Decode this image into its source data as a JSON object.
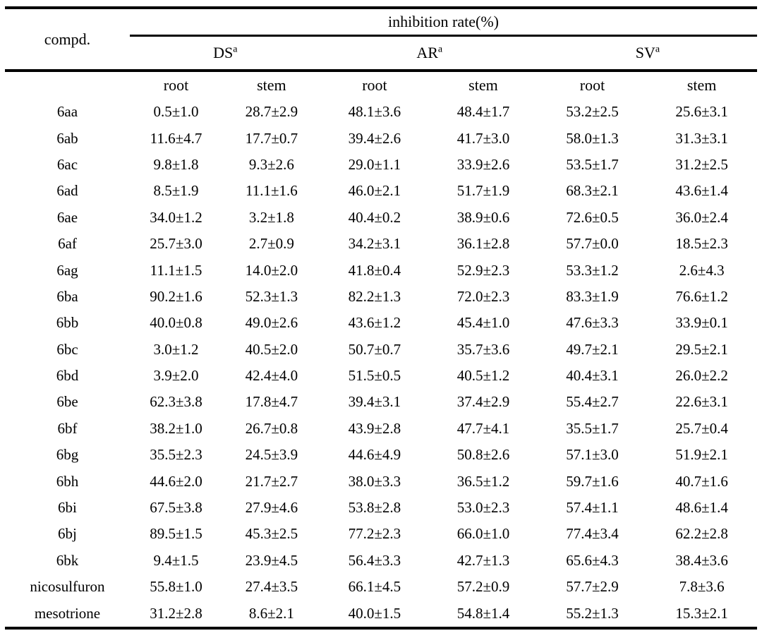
{
  "page": {
    "background": "#ffffff",
    "text_color": "#000000"
  },
  "table": {
    "compd_header": "compd.",
    "group_header": "inhibition rate(%)",
    "subgroups": [
      {
        "label": "DS",
        "sup": "a"
      },
      {
        "label": "AR",
        "sup": "a"
      },
      {
        "label": "SV",
        "sup": "a"
      }
    ],
    "sub_columns": [
      "root",
      "stem",
      "root",
      "stem",
      "root",
      "stem"
    ],
    "rows": [
      {
        "compd": "6aa",
        "values": [
          "0.5±1.0",
          "28.7±2.9",
          "48.1±3.6",
          "48.4±1.7",
          "53.2±2.5",
          "25.6±3.1"
        ]
      },
      {
        "compd": "6ab",
        "values": [
          "11.6±4.7",
          "17.7±0.7",
          "39.4±2.6",
          "41.7±3.0",
          "58.0±1.3",
          "31.3±3.1"
        ]
      },
      {
        "compd": "6ac",
        "values": [
          "9.8±1.8",
          "9.3±2.6",
          "29.0±1.1",
          "33.9±2.6",
          "53.5±1.7",
          "31.2±2.5"
        ]
      },
      {
        "compd": "6ad",
        "values": [
          "8.5±1.9",
          "11.1±1.6",
          "46.0±2.1",
          "51.7±1.9",
          "68.3±2.1",
          "43.6±1.4"
        ]
      },
      {
        "compd": "6ae",
        "values": [
          "34.0±1.2",
          "3.2±1.8",
          "40.4±0.2",
          "38.9±0.6",
          "72.6±0.5",
          "36.0±2.4"
        ]
      },
      {
        "compd": "6af",
        "values": [
          "25.7±3.0",
          "2.7±0.9",
          "34.2±3.1",
          "36.1±2.8",
          "57.7±0.0",
          "18.5±2.3"
        ]
      },
      {
        "compd": "6ag",
        "values": [
          "11.1±1.5",
          "14.0±2.0",
          "41.8±0.4",
          "52.9±2.3",
          "53.3±1.2",
          "2.6±4.3"
        ]
      },
      {
        "compd": "6ba",
        "values": [
          "90.2±1.6",
          "52.3±1.3",
          "82.2±1.3",
          "72.0±2.3",
          "83.3±1.9",
          "76.6±1.2"
        ]
      },
      {
        "compd": "6bb",
        "values": [
          "40.0±0.8",
          "49.0±2.6",
          "43.6±1.2",
          "45.4±1.0",
          "47.6±3.3",
          "33.9±0.1"
        ]
      },
      {
        "compd": "6bc",
        "values": [
          "3.0±1.2",
          "40.5±2.0",
          "50.7±0.7",
          "35.7±3.6",
          "49.7±2.1",
          "29.5±2.1"
        ]
      },
      {
        "compd": "6bd",
        "values": [
          "3.9±2.0",
          "42.4±4.0",
          "51.5±0.5",
          "40.5±1.2",
          "40.4±3.1",
          "26.0±2.2"
        ]
      },
      {
        "compd": "6be",
        "values": [
          "62.3±3.8",
          "17.8±4.7",
          "39.4±3.1",
          "37.4±2.9",
          "55.4±2.7",
          "22.6±3.1"
        ]
      },
      {
        "compd": "6bf",
        "values": [
          "38.2±1.0",
          "26.7±0.8",
          "43.9±2.8",
          "47.7±4.1",
          "35.5±1.7",
          "25.7±0.4"
        ]
      },
      {
        "compd": "6bg",
        "values": [
          "35.5±2.3",
          "24.5±3.9",
          "44.6±4.9",
          "50.8±2.6",
          "57.1±3.0",
          "51.9±2.1"
        ]
      },
      {
        "compd": "6bh",
        "values": [
          "44.6±2.0",
          "21.7±2.7",
          "38.0±3.3",
          "36.5±1.2",
          "59.7±1.6",
          "40.7±1.6"
        ]
      },
      {
        "compd": "6bi",
        "values": [
          "67.5±3.8",
          "27.9±4.6",
          "53.8±2.8",
          "53.0±2.3",
          "57.4±1.1",
          "48.6±1.4"
        ]
      },
      {
        "compd": "6bj",
        "values": [
          "89.5±1.5",
          "45.3±2.5",
          "77.2±2.3",
          "66.0±1.0",
          "77.4±3.4",
          "62.2±2.8"
        ]
      },
      {
        "compd": "6bk",
        "values": [
          "9.4±1.5",
          "23.9±4.5",
          "56.4±3.3",
          "42.7±1.3",
          "65.6±4.3",
          "38.4±3.6"
        ]
      },
      {
        "compd": "nicosulfuron",
        "values": [
          "55.8±1.0",
          "27.4±3.5",
          "66.1±4.5",
          "57.2±0.9",
          "57.7±2.9",
          "7.8±3.6"
        ]
      },
      {
        "compd": "mesotrione",
        "values": [
          "31.2±2.8",
          "8.6±2.1",
          "40.0±1.5",
          "54.8±1.4",
          "55.2±1.3",
          "15.3±2.1"
        ]
      }
    ]
  }
}
